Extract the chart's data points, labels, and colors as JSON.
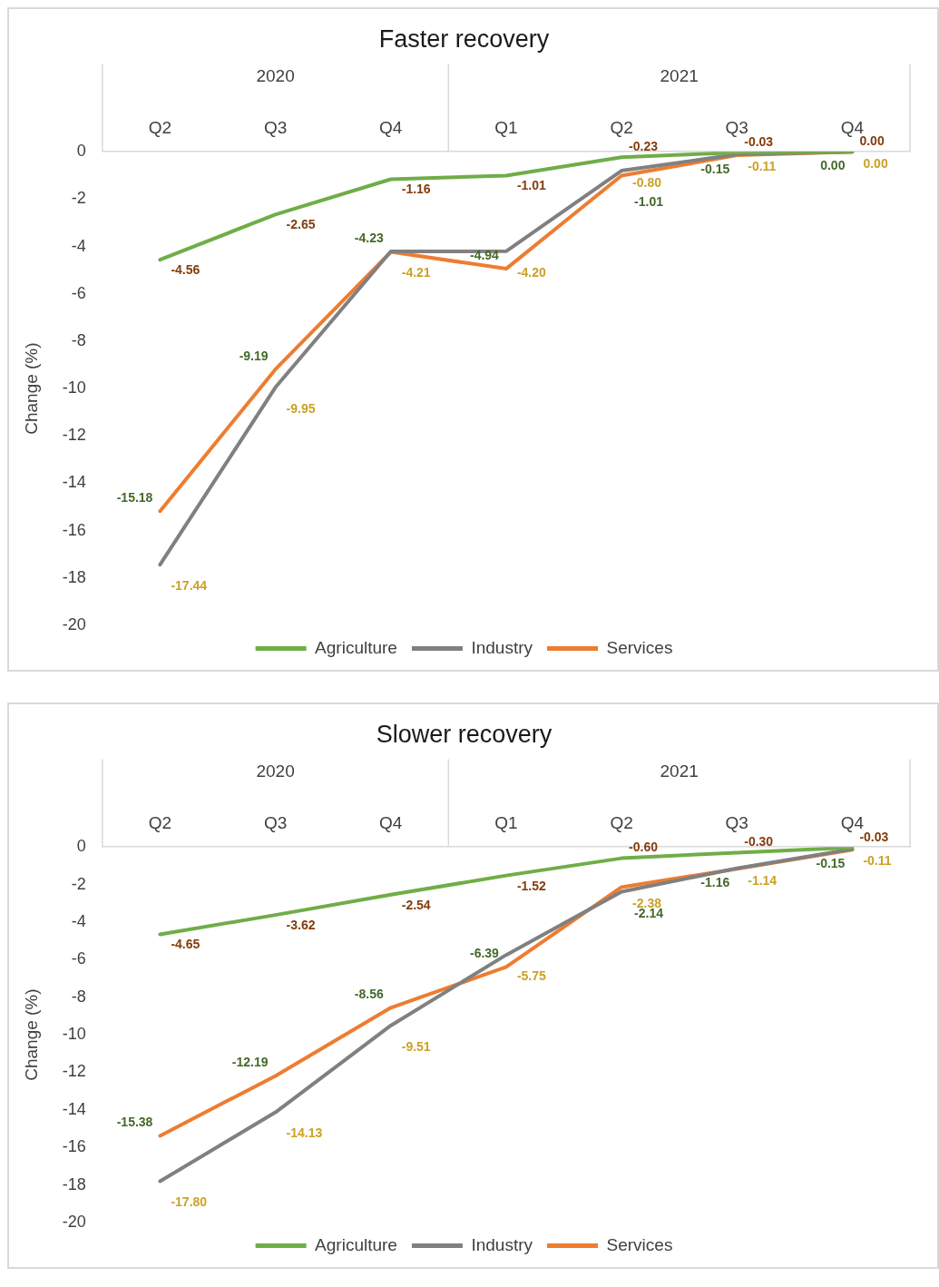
{
  "chart_data": [
    {
      "type": "line",
      "title": "Faster recovery",
      "ylabel": "Change (%)",
      "categories": [
        "Q2",
        "Q3",
        "Q4",
        "Q1",
        "Q2",
        "Q3",
        "Q4"
      ],
      "annotations": [
        "2020",
        "2021"
      ],
      "series": [
        {
          "name": "Agriculture",
          "color": "#70ad47",
          "values": [
            -4.56,
            -2.65,
            -1.16,
            -1.01,
            -0.23,
            -0.03,
            0
          ],
          "value_labels": [
            "-4.56",
            "-2.65",
            "-1.16",
            "-1.01",
            "-0.23",
            "-0.03",
            "0.00"
          ]
        },
        {
          "name": "Industry",
          "color": "#808080",
          "values": [
            -17.44,
            -9.95,
            -4.21,
            -4.2,
            -0.8,
            -0.11,
            0
          ],
          "value_labels": [
            "-17.44",
            "-9.95",
            "-4.21",
            "-4.20",
            "-0.80",
            "-0.11",
            "0.00"
          ]
        },
        {
          "name": "Services",
          "color": "#ed7d31",
          "values": [
            -15.18,
            -9.19,
            -4.23,
            -4.94,
            -1.01,
            -0.15,
            0
          ],
          "value_labels": [
            "-15.18",
            "-9.19",
            "-4.23",
            "-4.94",
            "-1.01",
            "-0.15",
            "0.00"
          ]
        }
      ],
      "ylim": [
        -20,
        0
      ],
      "yticks": [
        -20,
        -18,
        -16,
        -14,
        -12,
        -10,
        -8,
        -6,
        -4,
        -2,
        0
      ],
      "legend": "bottom"
    },
    {
      "type": "line",
      "title": "Slower recovery",
      "ylabel": "Change (%)",
      "categories": [
        "Q2",
        "Q3",
        "Q4",
        "Q1",
        "Q2",
        "Q3",
        "Q4"
      ],
      "annotations": [
        "2020",
        "2021"
      ],
      "series": [
        {
          "name": "Agriculture",
          "color": "#70ad47",
          "values": [
            -4.65,
            -3.62,
            -2.54,
            -1.52,
            -0.6,
            -0.3,
            -0.03
          ],
          "value_labels": [
            "-4.65",
            "-3.62",
            "-2.54",
            "-1.52",
            "-0.60",
            "-0.30",
            "-0.03"
          ]
        },
        {
          "name": "Industry",
          "color": "#808080",
          "values": [
            -17.8,
            -14.13,
            -9.51,
            -5.75,
            -2.38,
            -1.14,
            -0.11
          ],
          "value_labels": [
            "-17.80",
            "-14.13",
            "-9.51",
            "-5.75",
            "-2.38",
            "-1.14",
            "-0.11"
          ]
        },
        {
          "name": "Services",
          "color": "#ed7d31",
          "values": [
            -15.38,
            -12.19,
            -8.56,
            -6.39,
            -2.14,
            -1.16,
            -0.15
          ],
          "value_labels": [
            "-15.38",
            "-12.19",
            "-8.56",
            "-6.39",
            "-2.14",
            "-1.16",
            "-0.15"
          ]
        }
      ],
      "ylim": [
        -20,
        0
      ],
      "yticks": [
        -20,
        -18,
        -16,
        -14,
        -12,
        -10,
        -8,
        -6,
        -4,
        -2,
        0
      ],
      "legend": "bottom"
    }
  ]
}
